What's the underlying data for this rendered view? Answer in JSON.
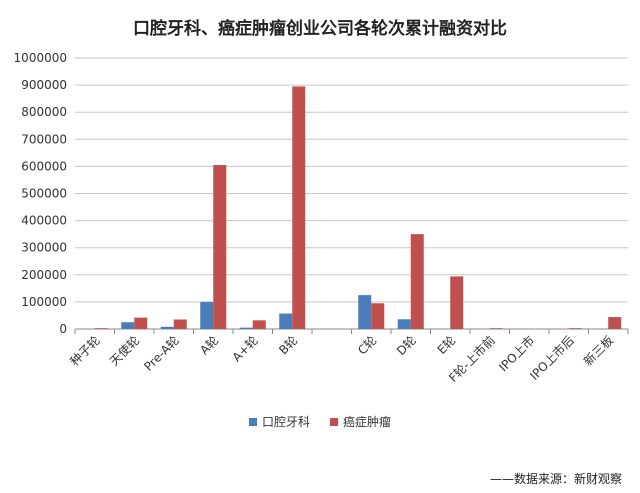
{
  "chart_data": {
    "type": "bar",
    "title": "口腔牙科、癌症肿瘤创业公司各轮次累计融资对比",
    "categories": [
      "种子轮",
      "天使轮",
      "Pre-A轮",
      "A轮",
      "A+轮",
      "B轮",
      "",
      "C轮",
      "D轮",
      "E轮",
      "F轮-上市前",
      "IPO上市",
      "IPO上市后",
      "新三板"
    ],
    "series": [
      {
        "name": "口腔牙科",
        "color": "#4a7ebb",
        "values": [
          0,
          25000,
          8000,
          100000,
          5000,
          57000,
          0,
          125000,
          36000,
          0,
          0,
          0,
          0,
          0
        ]
      },
      {
        "name": "癌症肿瘤",
        "color": "#c0504d",
        "values": [
          3000,
          42000,
          35000,
          605000,
          32000,
          895000,
          0,
          95000,
          350000,
          194000,
          3000,
          0,
          3000,
          44000
        ]
      }
    ],
    "ylim": [
      0,
      1000000
    ],
    "yticks": [
      "0",
      "100000",
      "200000",
      "300000",
      "400000",
      "500000",
      "600000",
      "700000",
      "800000",
      "900000",
      "1000000"
    ],
    "grid": true,
    "legend": "bottom"
  },
  "source": "——数据来源：新财观察"
}
